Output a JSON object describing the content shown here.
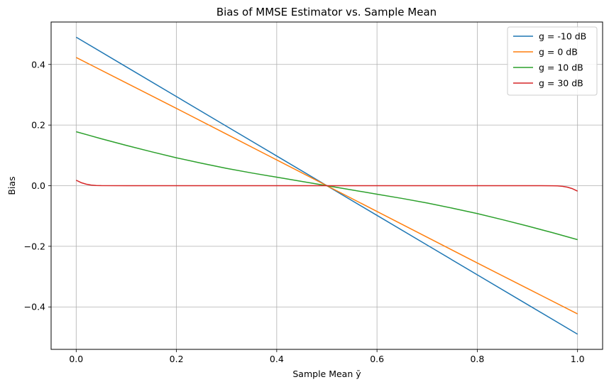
{
  "chart_data": {
    "type": "line",
    "title": "Bias of MMSE Estimator vs. Sample Mean",
    "xlabel": "Sample Mean ȳ",
    "ylabel": "Bias",
    "xlim": [
      -0.05,
      1.05
    ],
    "ylim": [
      -0.54,
      0.54
    ],
    "xticks": [
      0.0,
      0.2,
      0.4,
      0.6,
      0.8,
      1.0
    ],
    "xtick_labels": [
      "0.0",
      "0.2",
      "0.4",
      "0.6",
      "0.8",
      "1.0"
    ],
    "yticks": [
      -0.4,
      -0.2,
      0.0,
      0.2,
      0.4
    ],
    "ytick_labels": [
      "−0.4",
      "−0.2",
      "0.0",
      "0.2",
      "0.4"
    ],
    "grid": true,
    "legend_position": "top-right",
    "series": [
      {
        "name": "g = -10 dB",
        "color": "#1f77b4",
        "x": [
          0.0,
          0.1,
          0.2,
          0.3,
          0.4,
          0.5,
          0.6,
          0.7,
          0.8,
          0.9,
          1.0
        ],
        "y": [
          0.49,
          0.392,
          0.294,
          0.196,
          0.098,
          0.0,
          -0.098,
          -0.196,
          -0.294,
          -0.392,
          -0.49
        ]
      },
      {
        "name": "g = 0 dB",
        "color": "#ff7f0e",
        "x": [
          0.0,
          0.1,
          0.2,
          0.3,
          0.4,
          0.5,
          0.6,
          0.7,
          0.8,
          0.9,
          1.0
        ],
        "y": [
          0.423,
          0.339,
          0.255,
          0.17,
          0.085,
          0.0,
          -0.085,
          -0.17,
          -0.255,
          -0.339,
          -0.423
        ]
      },
      {
        "name": "g = 10 dB",
        "color": "#2ca02c",
        "x": [
          0.0,
          0.05,
          0.1,
          0.15,
          0.2,
          0.25,
          0.3,
          0.35,
          0.4,
          0.45,
          0.5,
          0.55,
          0.6,
          0.65,
          0.7,
          0.75,
          0.8,
          0.85,
          0.9,
          0.95,
          1.0
        ],
        "y": [
          0.178,
          0.155,
          0.133,
          0.112,
          0.092,
          0.074,
          0.057,
          0.042,
          0.028,
          0.014,
          0.0,
          -0.014,
          -0.028,
          -0.042,
          -0.057,
          -0.074,
          -0.092,
          -0.112,
          -0.133,
          -0.155,
          -0.178
        ]
      },
      {
        "name": "g = 30 dB",
        "color": "#d62728",
        "x": [
          0.0,
          0.01,
          0.02,
          0.03,
          0.04,
          0.05,
          0.1,
          0.3,
          0.5,
          0.7,
          0.9,
          0.95,
          0.96,
          0.97,
          0.98,
          0.99,
          1.0
        ],
        "y": [
          0.018,
          0.01,
          0.005,
          0.002,
          0.0007,
          0.0002,
          0.0,
          0.0,
          0.0,
          0.0,
          0.0,
          -0.0002,
          -0.0007,
          -0.002,
          -0.005,
          -0.01,
          -0.018
        ]
      }
    ]
  }
}
